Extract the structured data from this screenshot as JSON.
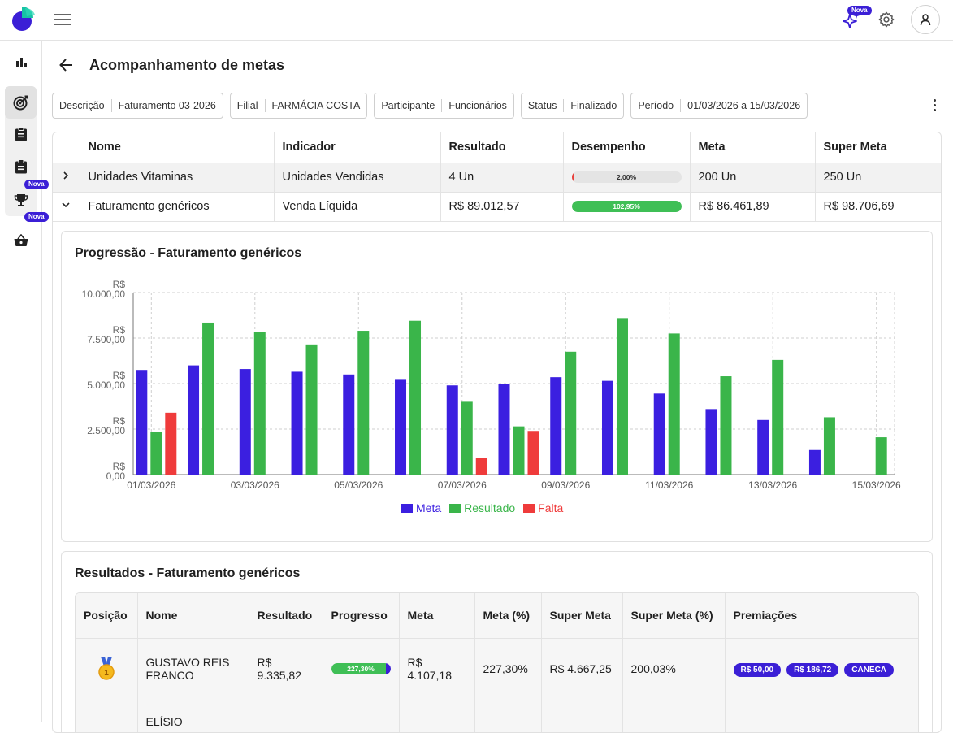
{
  "header": {
    "nova_label": "Nova"
  },
  "sidebar": {
    "nova_badges": [
      "Nova",
      "Nova"
    ]
  },
  "page": {
    "title": "Acompanhamento de metas"
  },
  "filters": [
    {
      "key": "Descrição",
      "value": "Faturamento 03-2026"
    },
    {
      "key": "Filial",
      "value": "FARMÁCIA COSTA"
    },
    {
      "key": "Participante",
      "value": "Funcionários"
    },
    {
      "key": "Status",
      "value": "Finalizado"
    },
    {
      "key": "Período",
      "value": "01/03/2026 a 15/03/2026"
    }
  ],
  "indicators": {
    "columns": [
      "Nome",
      "Indicador",
      "Resultado",
      "Desempenho",
      "Meta",
      "Super Meta"
    ],
    "rows": [
      {
        "nome": "Unidades Vitaminas",
        "indicador": "Unidades Vendidas",
        "resultado": "4 Un",
        "desempenho": "2,00%",
        "desempenho_value": 0.02,
        "desempenho_color": "#e8413c",
        "meta": "200 Un",
        "super_meta": "250 Un"
      },
      {
        "nome": "Faturamento genéricos",
        "indicador": "Venda Líquida",
        "resultado": "R$ 89.012,57",
        "desempenho": "102,95%",
        "desempenho_value": 1.0,
        "desempenho_color": "#3fbf56",
        "meta": "R$ 86.461,89",
        "super_meta": "R$ 98.706,69"
      }
    ]
  },
  "progression": {
    "title": "Progressão - Faturamento genéricos"
  },
  "chart_data": {
    "type": "bar",
    "categories": [
      "01/03/2026",
      "02/03/2026",
      "03/03/2026",
      "04/03/2026",
      "05/03/2026",
      "06/03/2026",
      "07/03/2026",
      "08/03/2026",
      "09/03/2026",
      "10/03/2026",
      "11/03/2026",
      "12/03/2026",
      "13/03/2026",
      "14/03/2026",
      "15/03/2026"
    ],
    "tick_labels": [
      "01/03/2026",
      "03/03/2026",
      "05/03/2026",
      "07/03/2026",
      "09/03/2026",
      "11/03/2026",
      "13/03/2026",
      "15/03/2026"
    ],
    "y_ticks": [
      {
        "prefix": "R$",
        "value": "10.000,00"
      },
      {
        "prefix": "R$",
        "value": "7.500,00"
      },
      {
        "prefix": "R$",
        "value": "5.000,00"
      },
      {
        "prefix": "R$",
        "value": "2.500,00"
      },
      {
        "prefix": "R$",
        "value": "0,00"
      }
    ],
    "ylim": [
      0,
      10000
    ],
    "grid": true,
    "legend_position": "bottom-center",
    "series": [
      {
        "name": "Meta",
        "color": "#3b1fe0",
        "values": [
          5750,
          6000,
          5800,
          5650,
          5500,
          5250,
          4900,
          5000,
          5350,
          5150,
          4450,
          3600,
          3000,
          1350,
          null
        ]
      },
      {
        "name": "Resultado",
        "color": "#3ab54a",
        "values": [
          2350,
          8350,
          7850,
          7150,
          7900,
          8450,
          4000,
          2650,
          6750,
          8600,
          7750,
          5400,
          6300,
          3150,
          2050
        ]
      },
      {
        "name": "Falta",
        "color": "#ef3b3b",
        "values": [
          3400,
          null,
          null,
          null,
          null,
          null,
          900,
          2400,
          null,
          null,
          null,
          null,
          null,
          null,
          null
        ]
      }
    ]
  },
  "results": {
    "title": "Resultados - Faturamento genéricos",
    "columns": [
      "Posição",
      "Nome",
      "Resultado",
      "Progresso",
      "Meta",
      "Meta (%)",
      "Super Meta",
      "Super Meta (%)",
      "Premiações"
    ],
    "rows": [
      {
        "posicao": "1",
        "nome": "GUSTAVO REIS FRANCO",
        "resultado": "R$ 9.335,82",
        "progresso": "227,30%",
        "progresso_value": 1.0,
        "meta": "R$ 4.107,18",
        "meta_pct": "227,30%",
        "super_meta": "R$ 4.667,25",
        "super_meta_pct": "200,03%",
        "premiacoes": [
          "R$ 50,00",
          "R$ 186,72",
          "CANECA"
        ]
      },
      {
        "posicao": "",
        "nome": "ELÍSIO",
        "resultado": "",
        "progresso": "",
        "meta": "",
        "meta_pct": "",
        "super_meta": "",
        "super_meta_pct": "",
        "premiacoes": []
      }
    ]
  }
}
